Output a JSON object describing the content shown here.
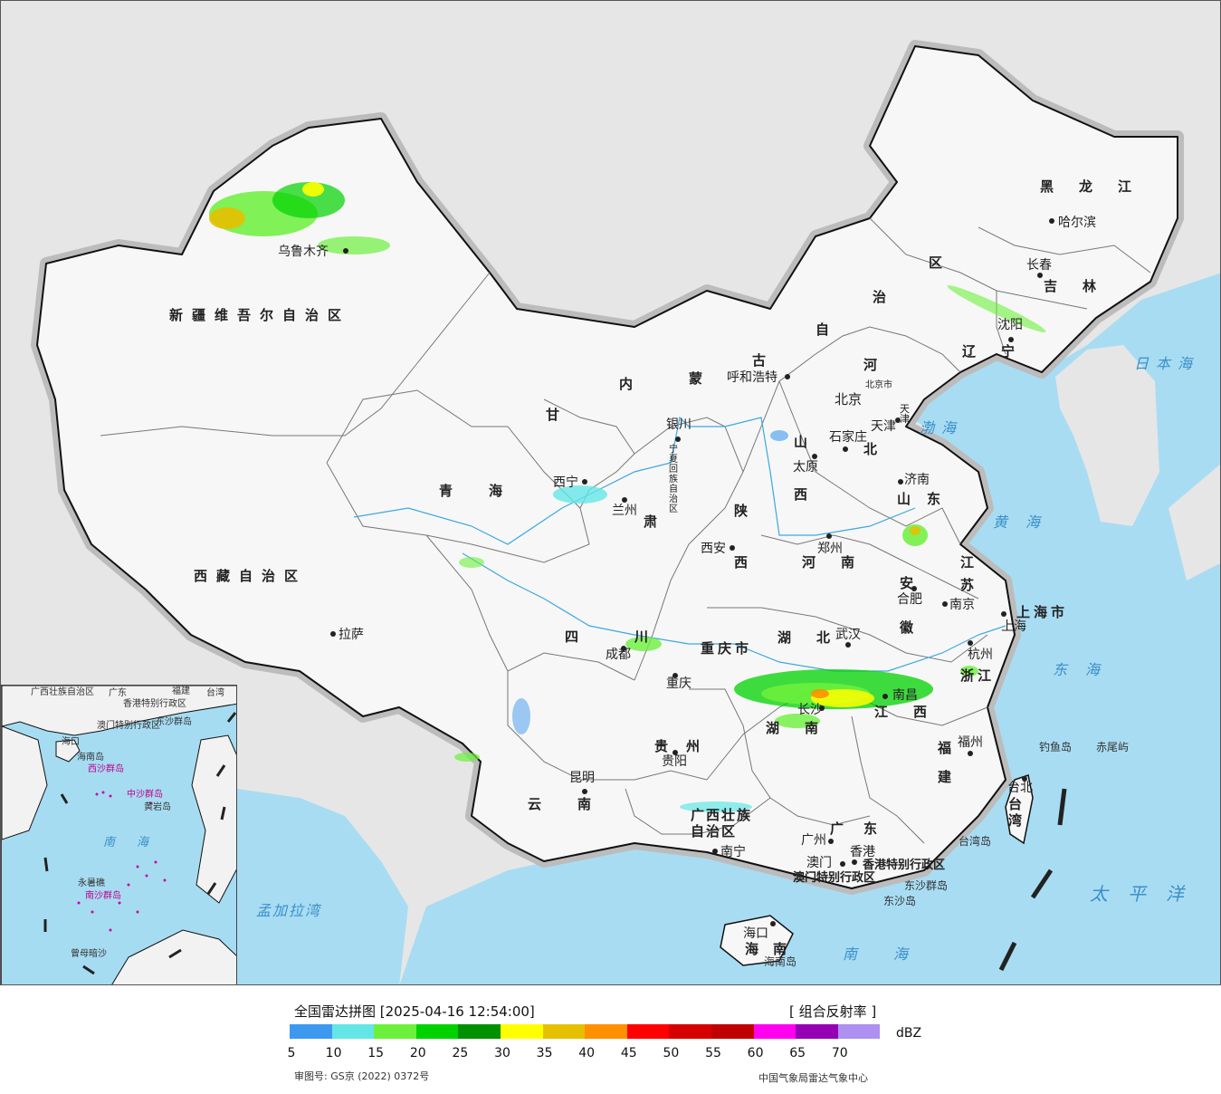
{
  "map": {
    "provinces": [
      {
        "name": "新疆维吾尔自治区"
      },
      {
        "name": "西藏自治区"
      },
      {
        "name": "青海"
      },
      {
        "name": "甘"
      },
      {
        "name": "肃"
      },
      {
        "name": "内"
      },
      {
        "name": "蒙"
      },
      {
        "name": "古"
      },
      {
        "name": "自"
      },
      {
        "name": "治"
      },
      {
        "name": "区"
      },
      {
        "name": "黑龙江"
      },
      {
        "name": "吉林"
      },
      {
        "name": "辽宁"
      },
      {
        "name": "河"
      },
      {
        "name": "北"
      },
      {
        "name": "山"
      },
      {
        "name": "西"
      },
      {
        "name": "山东"
      },
      {
        "name": "陕"
      },
      {
        "name": "西"
      },
      {
        "name": "河南"
      },
      {
        "name": "江"
      },
      {
        "name": "苏"
      },
      {
        "name": "安"
      },
      {
        "name": "徽"
      },
      {
        "name": "上海市"
      },
      {
        "name": "浙江"
      },
      {
        "name": "四"
      },
      {
        "name": "川"
      },
      {
        "name": "重庆市"
      },
      {
        "name": "湖北"
      },
      {
        "name": "湖南"
      },
      {
        "name": "江西"
      },
      {
        "name": "福"
      },
      {
        "name": "建"
      },
      {
        "name": "贵州"
      },
      {
        "name": "云南"
      },
      {
        "name": "广西壮族"
      },
      {
        "name": "自治区"
      },
      {
        "name": "广东"
      },
      {
        "name": "海南"
      },
      {
        "name": "台湾"
      },
      {
        "name": "宁夏回族自治区"
      },
      {
        "name": "北京市"
      },
      {
        "name": "天津"
      },
      {
        "name": "香港特别行政区"
      },
      {
        "name": "澳门特别行政区"
      }
    ],
    "cities": [
      {
        "name": "乌鲁木齐"
      },
      {
        "name": "拉萨"
      },
      {
        "name": "西宁"
      },
      {
        "name": "兰州"
      },
      {
        "name": "银川"
      },
      {
        "name": "呼和浩特"
      },
      {
        "name": "北京"
      },
      {
        "name": "天津"
      },
      {
        "name": "石家庄"
      },
      {
        "name": "太原"
      },
      {
        "name": "济南"
      },
      {
        "name": "西安"
      },
      {
        "name": "郑州"
      },
      {
        "name": "合肥"
      },
      {
        "name": "南京"
      },
      {
        "name": "上海"
      },
      {
        "name": "杭州"
      },
      {
        "name": "武汉"
      },
      {
        "name": "成都"
      },
      {
        "name": "重庆"
      },
      {
        "name": "长沙"
      },
      {
        "name": "南昌"
      },
      {
        "name": "福州"
      },
      {
        "name": "台北"
      },
      {
        "name": "贵阳"
      },
      {
        "name": "昆明"
      },
      {
        "name": "南宁"
      },
      {
        "name": "广州"
      },
      {
        "name": "澳门"
      },
      {
        "name": "香港"
      },
      {
        "name": "海口"
      },
      {
        "name": "沈阳"
      },
      {
        "name": "长春"
      },
      {
        "name": "哈尔滨"
      }
    ],
    "seas": [
      {
        "name": "日本海"
      },
      {
        "name": "渤海"
      },
      {
        "name": "黄海"
      },
      {
        "name": "东海"
      },
      {
        "name": "太平洋"
      },
      {
        "name": "南海"
      },
      {
        "name": "孟加拉湾"
      }
    ],
    "islands": [
      {
        "name": "钓鱼岛"
      },
      {
        "name": "赤尾屿"
      },
      {
        "name": "台湾岛"
      },
      {
        "name": "东沙群岛"
      },
      {
        "name": "东沙岛"
      },
      {
        "name": "海南岛"
      }
    ],
    "inset": {
      "labels": [
        "广西壮族自治区",
        "广东",
        "福建",
        "台湾",
        "海口",
        "香港特别行政区",
        "澳门特别行政区",
        "东沙群岛",
        "海南岛",
        "西沙群岛",
        "中沙群岛",
        "黄岩岛",
        "南沙群岛",
        "永暑礁",
        "曾母暗沙"
      ],
      "sea": "南海"
    }
  },
  "legend": {
    "title": "全国雷达拼图 [2025-04-16 12:54:00]",
    "product": "[ 组合反射率 ]",
    "unit": "dBZ",
    "colors": [
      "#3d99ee",
      "#64e6e6",
      "#6cf03c",
      "#00d200",
      "#009000",
      "#ffff00",
      "#e6c000",
      "#ff9000",
      "#ff0000",
      "#d60000",
      "#c00000",
      "#ff00f0",
      "#9600b4",
      "#ad90f0"
    ],
    "ticks": [
      "5",
      "10",
      "15",
      "20",
      "25",
      "30",
      "35",
      "40",
      "45",
      "50",
      "55",
      "60",
      "65",
      "70"
    ],
    "approval": "审图号: GS京 (2022) 0372号",
    "source": "中国气象局雷达气象中心"
  }
}
